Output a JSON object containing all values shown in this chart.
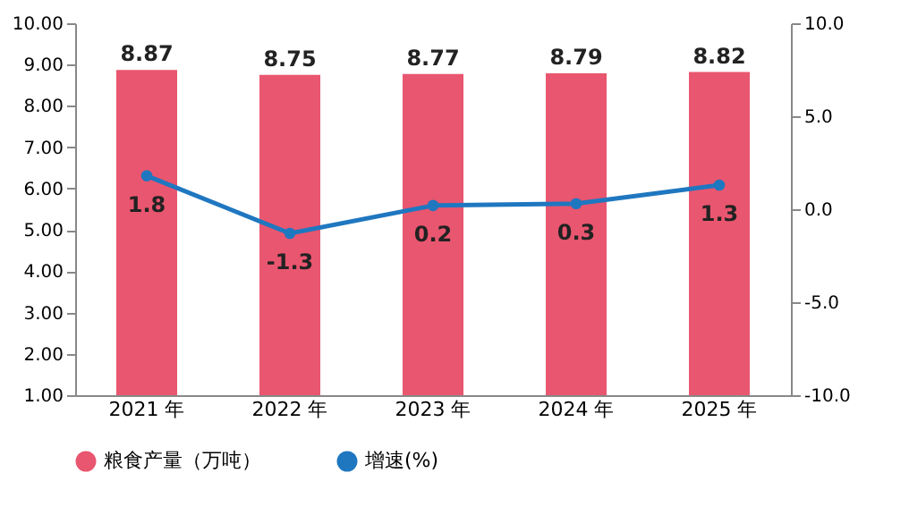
{
  "chart_data": {
    "type": "bar",
    "categories": [
      "2021 年",
      "2022 年",
      "2023 年",
      "2024 年",
      "2025 年"
    ],
    "series": [
      {
        "name": "粮食产量（万吨）",
        "color": "#e9566f",
        "values": [
          8.87,
          8.75,
          8.77,
          8.79,
          8.82
        ]
      },
      {
        "name": "增速(%)",
        "type": "line",
        "axis": "y2",
        "color": "#1f77c0",
        "values": [
          1.8,
          -1.3,
          0.2,
          0.3,
          1.3
        ]
      }
    ],
    "ylim": [
      1,
      10
    ],
    "yticks": [
      {
        "value": 1,
        "label": "1.00"
      },
      {
        "value": 2,
        "label": "2.00"
      },
      {
        "value": 3,
        "label": "3.00"
      },
      {
        "value": 4,
        "label": "4.00"
      },
      {
        "value": 5,
        "label": "5.00"
      },
      {
        "value": 6,
        "label": "6.00"
      },
      {
        "value": 7,
        "label": "7.00"
      },
      {
        "value": 8,
        "label": "8.00"
      },
      {
        "value": 9,
        "label": "9.00"
      },
      {
        "value": 10,
        "label": "10.00"
      }
    ],
    "y2lim": [
      -10,
      10
    ],
    "y2ticks": [
      {
        "value": -10,
        "label": "-10.0"
      },
      {
        "value": -5,
        "label": "-5.0"
      },
      {
        "value": 0,
        "label": "0.0"
      },
      {
        "value": 5,
        "label": "5.0"
      },
      {
        "value": 10,
        "label": "10.0"
      }
    ],
    "data_labels": true,
    "legend": "bottom",
    "marker": "circle",
    "line_style": "solid"
  }
}
